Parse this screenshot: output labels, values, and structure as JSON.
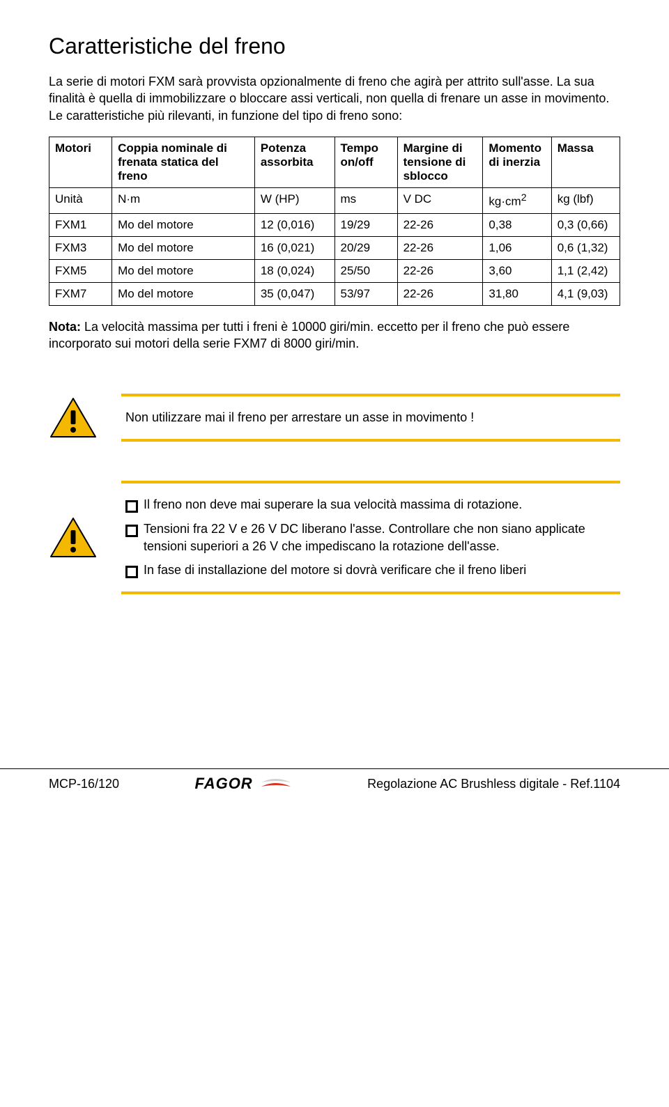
{
  "title": "Caratteristiche del freno",
  "intro": "La serie di motori FXM sarà provvista opzionalmente di freno che agirà per attrito sull'asse. La sua finalità è quella di immobilizzare o bloccare assi verticali, non quella di frenare un asse in movimento. Le caratteristiche più rilevanti, in funzione del tipo di freno sono:",
  "table": {
    "headers": [
      "Motori",
      "Coppia nominale di frenata statica del freno",
      "Potenza assorbita",
      "Tempo on/off",
      "Margine di tensione di sblocco",
      "Momento di inerzia",
      "Massa"
    ],
    "unit_row": [
      "Unità",
      "N·m",
      "W (HP)",
      "ms",
      "V DC",
      "kg·cm²",
      "kg  (lbf)"
    ],
    "rows": [
      [
        "FXM1",
        "Mo del motore",
        "12 (0,016)",
        "19/29",
        "22-26",
        "0,38",
        "0,3 (0,66)"
      ],
      [
        "FXM3",
        "Mo del motore",
        "16 (0,021)",
        "20/29",
        "22-26",
        "1,06",
        "0,6 (1,32)"
      ],
      [
        "FXM5",
        "Mo del motore",
        "18 (0,024)",
        "25/50",
        "22-26",
        "3,60",
        "1,1 (2,42)"
      ],
      [
        "FXM7",
        "Mo del motore",
        "35 (0,047)",
        "53/97",
        "22-26",
        "31,80",
        "4,1 (9,03)"
      ]
    ],
    "col_widths": [
      "11%",
      "25%",
      "14%",
      "11%",
      "15%",
      "12%",
      "12%"
    ]
  },
  "note_label": "Nota:",
  "note_text": " La velocità massima per tutti i freni è 10000 giri/min. eccetto per il freno che può essere incorporato sui motori della serie FXM7 di 8000 giri/min.",
  "callout1": {
    "border_color": "#f5b800",
    "text": "Non utilizzare mai il freno per arrestare un asse in movimento !"
  },
  "callout2": {
    "border_color": "#f5b800",
    "items": [
      "Il freno non deve mai superare la sua velocità massima di rotazione.",
      "Tensioni fra 22 V e 26 V DC liberano l'asse. Controllare che non siano applicate tensioni superiori a 26 V che impediscano la rotazione dell'asse.",
      "In fase di installazione del motore si dovrà verificare che il freno liberi"
    ]
  },
  "warning_icon": {
    "fill": "#f5b800",
    "stroke": "#000000"
  },
  "footer": {
    "left": "MCP-16/120",
    "brand": "FAGOR",
    "right": "Regolazione AC Brushless digitale - Ref.1104",
    "swoosh_top": "#d0d0d0",
    "swoosh_bottom": "#e03020"
  }
}
